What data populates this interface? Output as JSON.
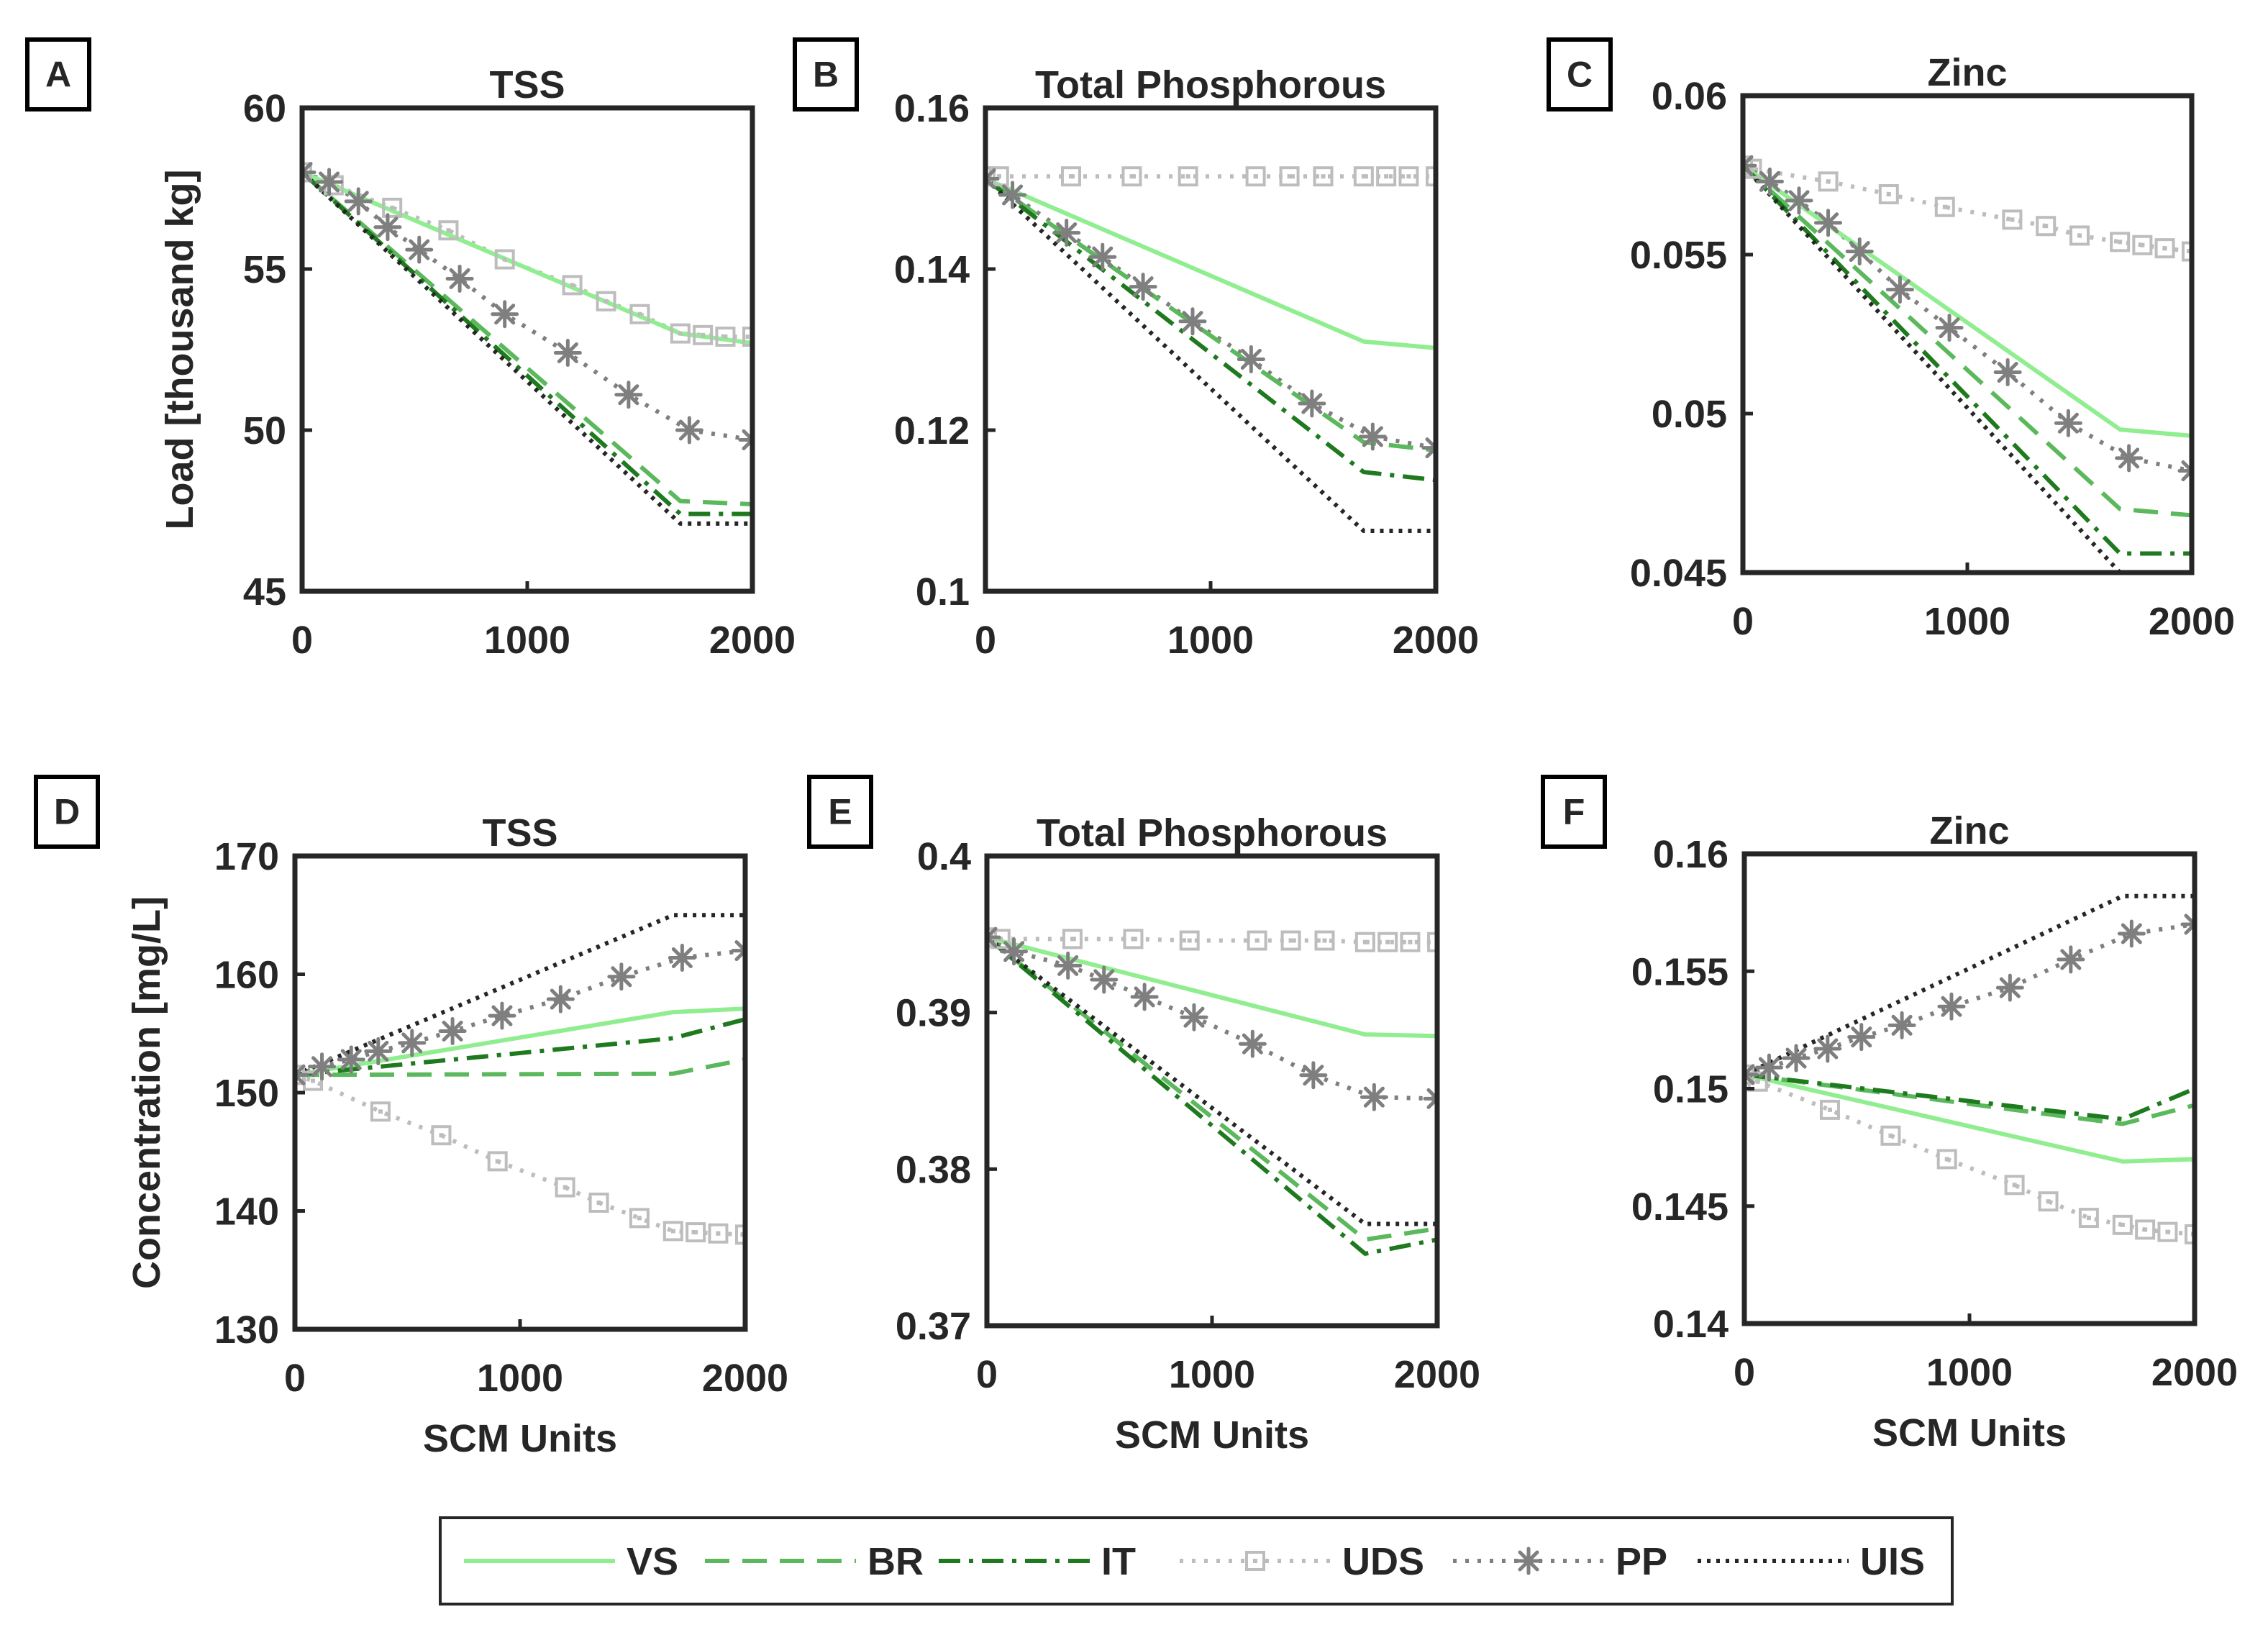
{
  "colors": {
    "VS": "#90ee90",
    "BR": "#5cb85c",
    "IT": "#1f7a1f",
    "UDS": "#bdbdbd",
    "PP": "#7f7f7f",
    "UIS": "#262626",
    "axis": "#262626"
  },
  "legend": {
    "items": [
      {
        "key": "VS",
        "label": "VS",
        "style": "solid"
      },
      {
        "key": "BR",
        "label": "BR",
        "style": "dashed"
      },
      {
        "key": "IT",
        "label": "IT",
        "style": "dashdot"
      },
      {
        "key": "UDS",
        "label": "UDS",
        "style": "dotted-square"
      },
      {
        "key": "PP",
        "label": "PP",
        "style": "dotted-star"
      },
      {
        "key": "UIS",
        "label": "UIS",
        "style": "dotted"
      }
    ]
  },
  "chart_data": [
    {
      "panel": "A",
      "type": "line",
      "title": "TSS",
      "ylabel": "Load [thousand kg]",
      "xlabel": "",
      "xlim": [
        0,
        2000
      ],
      "ylim": [
        45,
        60
      ],
      "xticks": [
        "0",
        "1000",
        "2000"
      ],
      "yticks": [
        "45",
        "50",
        "55",
        "60"
      ],
      "x": [
        0,
        1680,
        2000
      ],
      "series": [
        {
          "name": "VS",
          "x": [
            0,
            1680,
            2000
          ],
          "values": [
            58.0,
            53.0,
            52.7
          ]
        },
        {
          "name": "BR",
          "x": [
            0,
            1680,
            2000
          ],
          "values": [
            58.0,
            47.8,
            47.7
          ]
        },
        {
          "name": "IT",
          "x": [
            0,
            1680,
            2000
          ],
          "values": [
            58.0,
            47.4,
            47.4
          ]
        },
        {
          "name": "UDS",
          "x": [
            0,
            140,
            400,
            650,
            900,
            1200,
            1350,
            1500,
            1680,
            1780,
            1880,
            2000
          ],
          "values": [
            58.0,
            57.6,
            56.9,
            56.2,
            55.3,
            54.5,
            54.0,
            53.6,
            53.0,
            52.95,
            52.9,
            52.9
          ]
        },
        {
          "name": "PP",
          "x": [
            0,
            120,
            250,
            380,
            520,
            700,
            900,
            1180,
            1450,
            1720,
            2000
          ],
          "values": [
            58.0,
            57.7,
            57.1,
            56.3,
            55.6,
            54.7,
            53.6,
            52.4,
            51.1,
            50.0,
            49.7
          ]
        },
        {
          "name": "UIS",
          "x": [
            0,
            1680,
            2000
          ],
          "values": [
            58.0,
            47.1,
            47.1
          ]
        }
      ]
    },
    {
      "panel": "B",
      "type": "line",
      "title": "Total Phosphorous",
      "ylabel": "",
      "xlabel": "",
      "xlim": [
        0,
        2000
      ],
      "ylim": [
        0.1,
        0.16
      ],
      "xticks": [
        "0",
        "1000",
        "2000"
      ],
      "yticks": [
        "0.1",
        "0.12",
        "0.14",
        "0.16"
      ],
      "series": [
        {
          "name": "VS",
          "x": [
            0,
            1680,
            2000
          ],
          "values": [
            0.1512,
            0.131,
            0.1302
          ]
        },
        {
          "name": "BR",
          "x": [
            0,
            1680,
            2000
          ],
          "values": [
            0.1512,
            0.1185,
            0.1175
          ]
        },
        {
          "name": "IT",
          "x": [
            0,
            1680,
            2000
          ],
          "values": [
            0.1512,
            0.1148,
            0.1138
          ]
        },
        {
          "name": "UDS",
          "x": [
            0,
            60,
            380,
            650,
            900,
            1200,
            1350,
            1500,
            1680,
            1780,
            1880,
            2000
          ],
          "values": [
            0.1515,
            0.1515,
            0.1515,
            0.1515,
            0.1515,
            0.1515,
            0.1515,
            0.1515,
            0.1515,
            0.1515,
            0.1515,
            0.1515
          ]
        },
        {
          "name": "PP",
          "x": [
            0,
            120,
            360,
            520,
            700,
            920,
            1180,
            1450,
            1720,
            2000
          ],
          "values": [
            0.1512,
            0.1492,
            0.1445,
            0.1415,
            0.1378,
            0.1335,
            0.1288,
            0.1233,
            0.1192,
            0.1178
          ]
        },
        {
          "name": "UIS",
          "x": [
            0,
            1680,
            2000
          ],
          "values": [
            0.1512,
            0.1075,
            0.1075
          ]
        }
      ]
    },
    {
      "panel": "C",
      "type": "line",
      "title": "Zinc",
      "ylabel": "",
      "xlabel": "",
      "xlim": [
        0,
        2000
      ],
      "ylim": [
        0.045,
        0.06
      ],
      "xticks": [
        "0",
        "1000",
        "2000"
      ],
      "yticks": [
        "0.045",
        "0.05",
        "0.055",
        "0.06"
      ],
      "series": [
        {
          "name": "VS",
          "x": [
            0,
            1680,
            2000
          ],
          "values": [
            0.0578,
            0.0495,
            0.0493
          ]
        },
        {
          "name": "BR",
          "x": [
            0,
            1680,
            2000
          ],
          "values": [
            0.0578,
            0.047,
            0.0468
          ]
        },
        {
          "name": "IT",
          "x": [
            0,
            1680,
            2000
          ],
          "values": [
            0.0578,
            0.0456,
            0.0456
          ]
        },
        {
          "name": "UDS",
          "x": [
            0,
            40,
            380,
            650,
            900,
            1200,
            1350,
            1500,
            1680,
            1780,
            1880,
            2000
          ],
          "values": [
            0.0578,
            0.0577,
            0.0573,
            0.0569,
            0.0565,
            0.0561,
            0.0559,
            0.0556,
            0.0554,
            0.0553,
            0.0552,
            0.0551
          ]
        },
        {
          "name": "PP",
          "x": [
            0,
            120,
            250,
            380,
            520,
            700,
            920,
            1180,
            1450,
            1720,
            2000
          ],
          "values": [
            0.0578,
            0.0573,
            0.0567,
            0.056,
            0.0551,
            0.0539,
            0.0527,
            0.0513,
            0.0497,
            0.0486,
            0.0482
          ]
        },
        {
          "name": "UIS",
          "x": [
            0,
            1680,
            2000
          ],
          "values": [
            0.0578,
            0.045,
            0.045
          ]
        }
      ]
    },
    {
      "panel": "D",
      "type": "line",
      "title": "TSS",
      "ylabel": "Concentration [mg/L]",
      "xlabel": "SCM  Units",
      "xlim": [
        0,
        2000
      ],
      "ylim": [
        130,
        170
      ],
      "xticks": [
        "0",
        "1000",
        "2000"
      ],
      "yticks": [
        "130",
        "140",
        "150",
        "160",
        "170"
      ],
      "series": [
        {
          "name": "VS",
          "x": [
            0,
            1680,
            2000
          ],
          "values": [
            151.5,
            156.8,
            157.1
          ]
        },
        {
          "name": "BR",
          "x": [
            0,
            1680,
            2000
          ],
          "values": [
            151.5,
            151.6,
            152.8
          ]
        },
        {
          "name": "IT",
          "x": [
            0,
            1680,
            2000
          ],
          "values": [
            151.5,
            154.6,
            156.2
          ]
        },
        {
          "name": "UDS",
          "x": [
            0,
            80,
            380,
            650,
            900,
            1200,
            1350,
            1530,
            1680,
            1780,
            1880,
            2000
          ],
          "values": [
            151.5,
            151.0,
            148.4,
            146.4,
            144.2,
            142.0,
            140.7,
            139.4,
            138.3,
            138.2,
            138.1,
            138.0
          ]
        },
        {
          "name": "PP",
          "x": [
            0,
            120,
            250,
            370,
            520,
            700,
            920,
            1180,
            1450,
            1720,
            2000
          ],
          "values": [
            151.5,
            152.2,
            152.8,
            153.5,
            154.2,
            155.2,
            156.5,
            157.9,
            159.8,
            161.4,
            162.0
          ]
        },
        {
          "name": "UIS",
          "x": [
            0,
            1680,
            2000
          ],
          "values": [
            151.5,
            165.0,
            165.0
          ]
        }
      ]
    },
    {
      "panel": "E",
      "type": "line",
      "title": "Total Phosphorous",
      "ylabel": "",
      "xlabel": "SCM Units",
      "xlim": [
        0,
        2000
      ],
      "ylim": [
        0.37,
        0.4
      ],
      "xticks": [
        "0",
        "1000",
        "2000"
      ],
      "yticks": [
        "0.37",
        "0.38",
        "0.39",
        "0.4"
      ],
      "series": [
        {
          "name": "VS",
          "x": [
            0,
            1680,
            2000
          ],
          "values": [
            0.3948,
            0.3886,
            0.3885
          ]
        },
        {
          "name": "BR",
          "x": [
            0,
            1680,
            2000
          ],
          "values": [
            0.3948,
            0.3755,
            0.3762
          ]
        },
        {
          "name": "IT",
          "x": [
            0,
            1680,
            2000
          ],
          "values": [
            0.3948,
            0.3746,
            0.3755
          ]
        },
        {
          "name": "UDS",
          "x": [
            0,
            60,
            380,
            650,
            900,
            1200,
            1350,
            1500,
            1680,
            1780,
            1880,
            2000
          ],
          "values": [
            0.3948,
            0.3947,
            0.3947,
            0.3947,
            0.3946,
            0.3946,
            0.3946,
            0.3946,
            0.3945,
            0.3945,
            0.3945,
            0.3945
          ]
        },
        {
          "name": "PP",
          "x": [
            0,
            120,
            360,
            520,
            700,
            920,
            1180,
            1450,
            1720,
            2000
          ],
          "values": [
            0.3948,
            0.3939,
            0.393,
            0.3921,
            0.391,
            0.3897,
            0.388,
            0.386,
            0.3846,
            0.3845
          ]
        },
        {
          "name": "UIS",
          "x": [
            0,
            1680,
            2000
          ],
          "values": [
            0.3948,
            0.3765,
            0.3765
          ]
        }
      ]
    },
    {
      "panel": "F",
      "type": "line",
      "title": "Zinc",
      "ylabel": "",
      "xlabel": "SCM Units",
      "xlim": [
        0,
        2000
      ],
      "ylim": [
        0.14,
        0.16
      ],
      "xticks": [
        "0",
        "1000",
        "2000"
      ],
      "yticks": [
        "0.14",
        "0.145",
        "0.15",
        "0.155",
        "0.16"
      ],
      "series": [
        {
          "name": "VS",
          "x": [
            0,
            1680,
            2000
          ],
          "values": [
            0.1506,
            0.1469,
            0.147
          ]
        },
        {
          "name": "BR",
          "x": [
            0,
            1680,
            2000
          ],
          "values": [
            0.1506,
            0.1485,
            0.1493
          ]
        },
        {
          "name": "IT",
          "x": [
            0,
            1680,
            2000
          ],
          "values": [
            0.1506,
            0.1487,
            0.15
          ]
        },
        {
          "name": "UDS",
          "x": [
            0,
            60,
            380,
            650,
            900,
            1200,
            1350,
            1530,
            1680,
            1780,
            1880,
            2000
          ],
          "values": [
            0.1506,
            0.1503,
            0.1491,
            0.148,
            0.147,
            0.1459,
            0.1452,
            0.1445,
            0.1442,
            0.144,
            0.1439,
            0.1438
          ]
        },
        {
          "name": "PP",
          "x": [
            0,
            110,
            230,
            370,
            520,
            700,
            920,
            1180,
            1450,
            1720,
            2000
          ],
          "values": [
            0.1506,
            0.1509,
            0.1513,
            0.1517,
            0.1522,
            0.1527,
            0.1535,
            0.1543,
            0.1555,
            0.1566,
            0.157
          ]
        },
        {
          "name": "UIS",
          "x": [
            0,
            1680,
            2000
          ],
          "values": [
            0.1506,
            0.1582,
            0.1582
          ]
        }
      ]
    }
  ]
}
